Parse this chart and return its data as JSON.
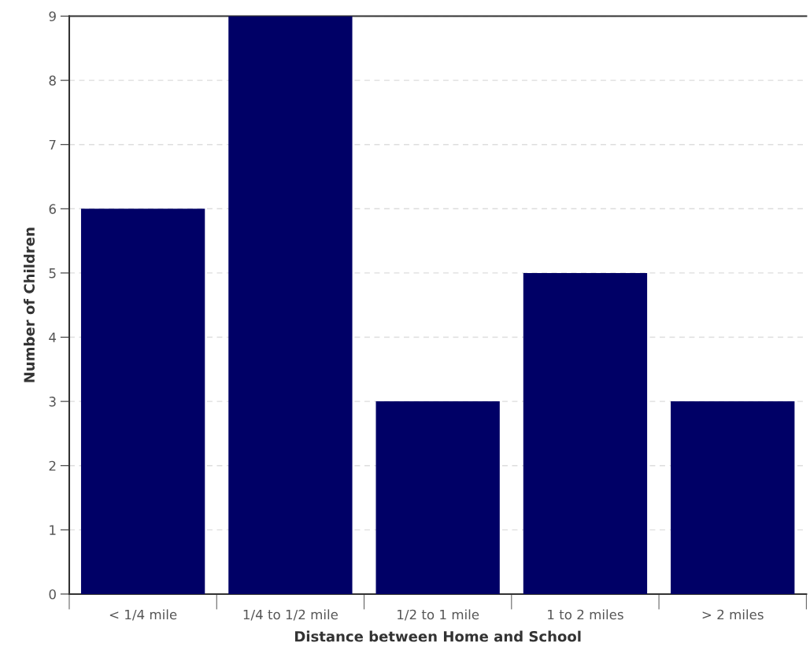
{
  "chart_data": {
    "type": "bar",
    "xlabel": "Distance between Home and School",
    "ylabel": "Number of Children",
    "categories": [
      "< 1/4 mile",
      "1/4 to 1/2 mile",
      "1/2 to 1 mile",
      "1 to 2 miles",
      "> 2 miles"
    ],
    "values": [
      6,
      9,
      3,
      5,
      3
    ],
    "color": "#000066",
    "ylim": [
      0,
      9
    ],
    "yticks": [
      0,
      1,
      2,
      3,
      4,
      5,
      6,
      7,
      8,
      9
    ],
    "grid": "y",
    "legend": false
  }
}
